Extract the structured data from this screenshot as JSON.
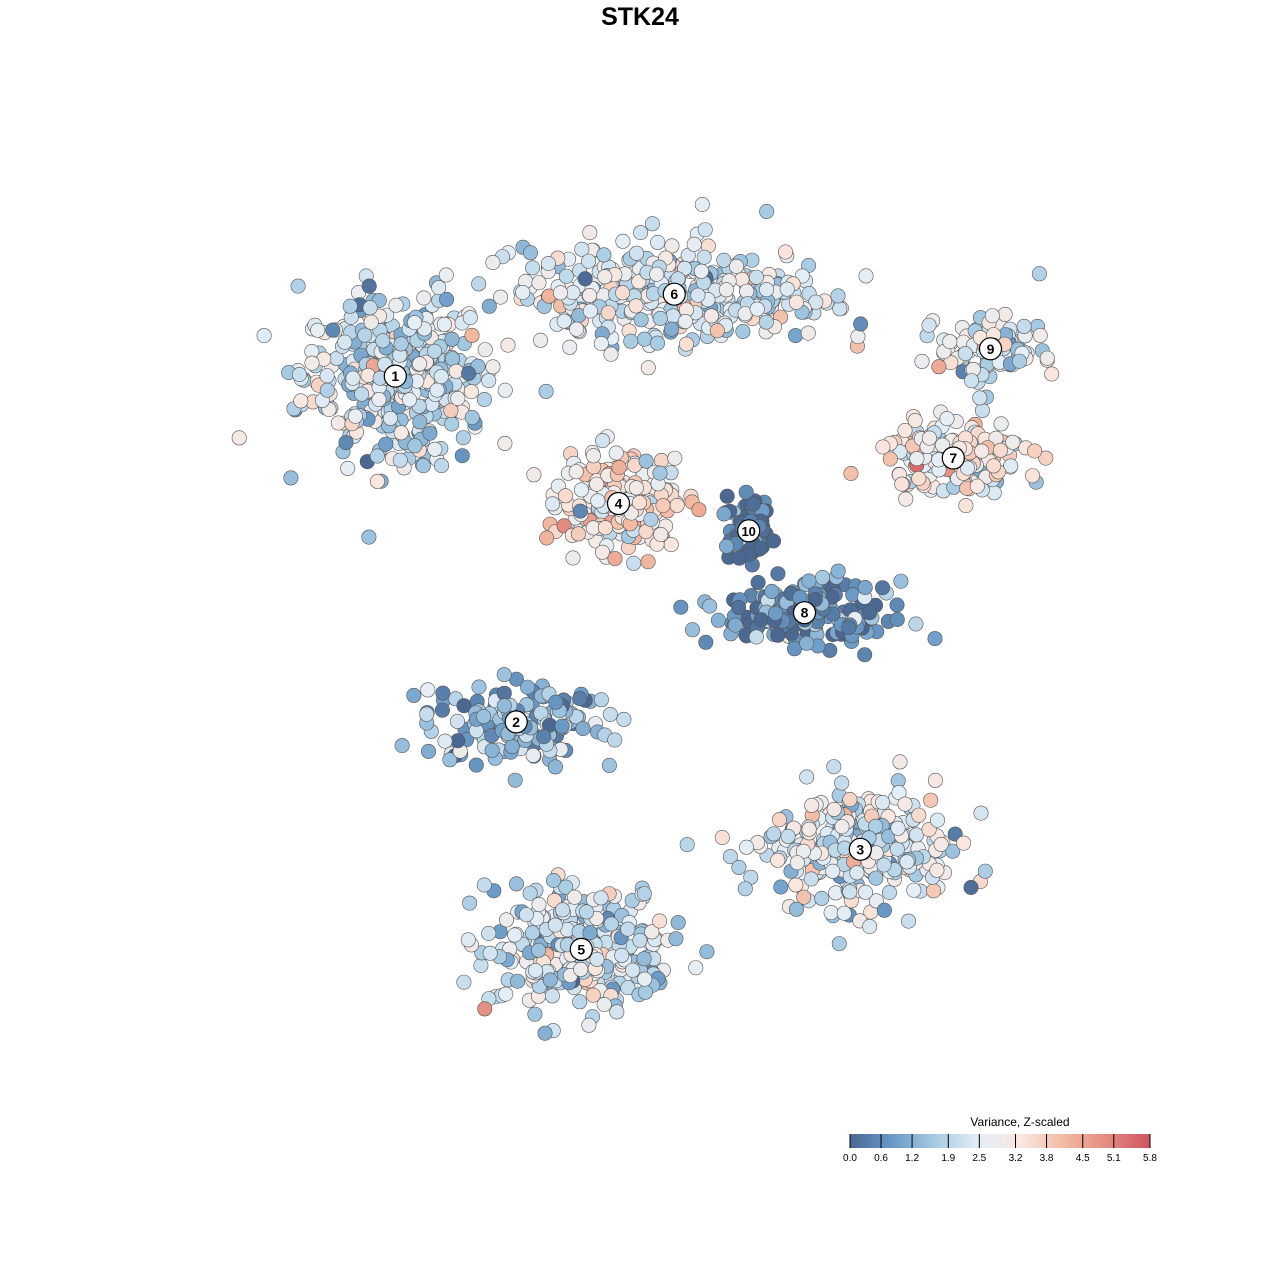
{
  "chart_data": {
    "type": "scatter",
    "title": "STK24",
    "xlabel": "",
    "ylabel": "",
    "grid": false,
    "legend": {
      "title": "Variance, Z-scaled",
      "placement": "bottom-right",
      "ticks": [
        "0.0",
        "0.6",
        "1.2",
        "1.9",
        "2.5",
        "3.2",
        "3.8",
        "4.5",
        "5.1",
        "5.8"
      ],
      "range": [
        0.0,
        5.8
      ],
      "colors": [
        "#4a6892",
        "#6a9ac7",
        "#a7cbe3",
        "#e4eef6",
        "#f9e7df",
        "#f2b9a1",
        "#e38b80",
        "#cf5260"
      ]
    },
    "clusters": [
      {
        "label": "1",
        "x": -24.0,
        "y": 24.0,
        "spread_x": 9.0,
        "spread_y": 8.0,
        "n": 420,
        "mean": 2.1
      },
      {
        "label": "2",
        "x": -11.0,
        "y": -14.0,
        "spread_x": 9.0,
        "spread_y": 4.0,
        "n": 160,
        "mean": 1.2
      },
      {
        "label": "3",
        "x": 26.0,
        "y": -28.0,
        "spread_x": 9.0,
        "spread_y": 6.0,
        "n": 300,
        "mean": 2.3
      },
      {
        "label": "4",
        "x": 0.0,
        "y": 10.0,
        "spread_x": 5.5,
        "spread_y": 4.5,
        "n": 220,
        "mean": 3.0
      },
      {
        "label": "5",
        "x": -4.0,
        "y": -39.0,
        "spread_x": 9.0,
        "spread_y": 6.0,
        "n": 320,
        "mean": 2.2
      },
      {
        "label": "6",
        "x": 6.0,
        "y": 33.0,
        "spread_x": 15.0,
        "spread_y": 5.0,
        "n": 380,
        "mean": 2.4
      },
      {
        "label": "7",
        "x": 36.0,
        "y": 15.0,
        "spread_x": 7.0,
        "spread_y": 3.5,
        "n": 180,
        "mean": 3.0
      },
      {
        "label": "8",
        "x": 20.0,
        "y": -2.0,
        "spread_x": 8.0,
        "spread_y": 3.0,
        "n": 200,
        "mean": 0.6
      },
      {
        "label": "9",
        "x": 40.0,
        "y": 27.0,
        "spread_x": 5.0,
        "spread_y": 3.5,
        "n": 110,
        "mean": 2.5
      },
      {
        "label": "10",
        "x": 14.0,
        "y": 7.0,
        "spread_x": 2.0,
        "spread_y": 3.0,
        "n": 90,
        "mean": 0.2
      }
    ],
    "xlim": [
      -45,
      55
    ],
    "ylim": [
      -55,
      45
    ]
  }
}
